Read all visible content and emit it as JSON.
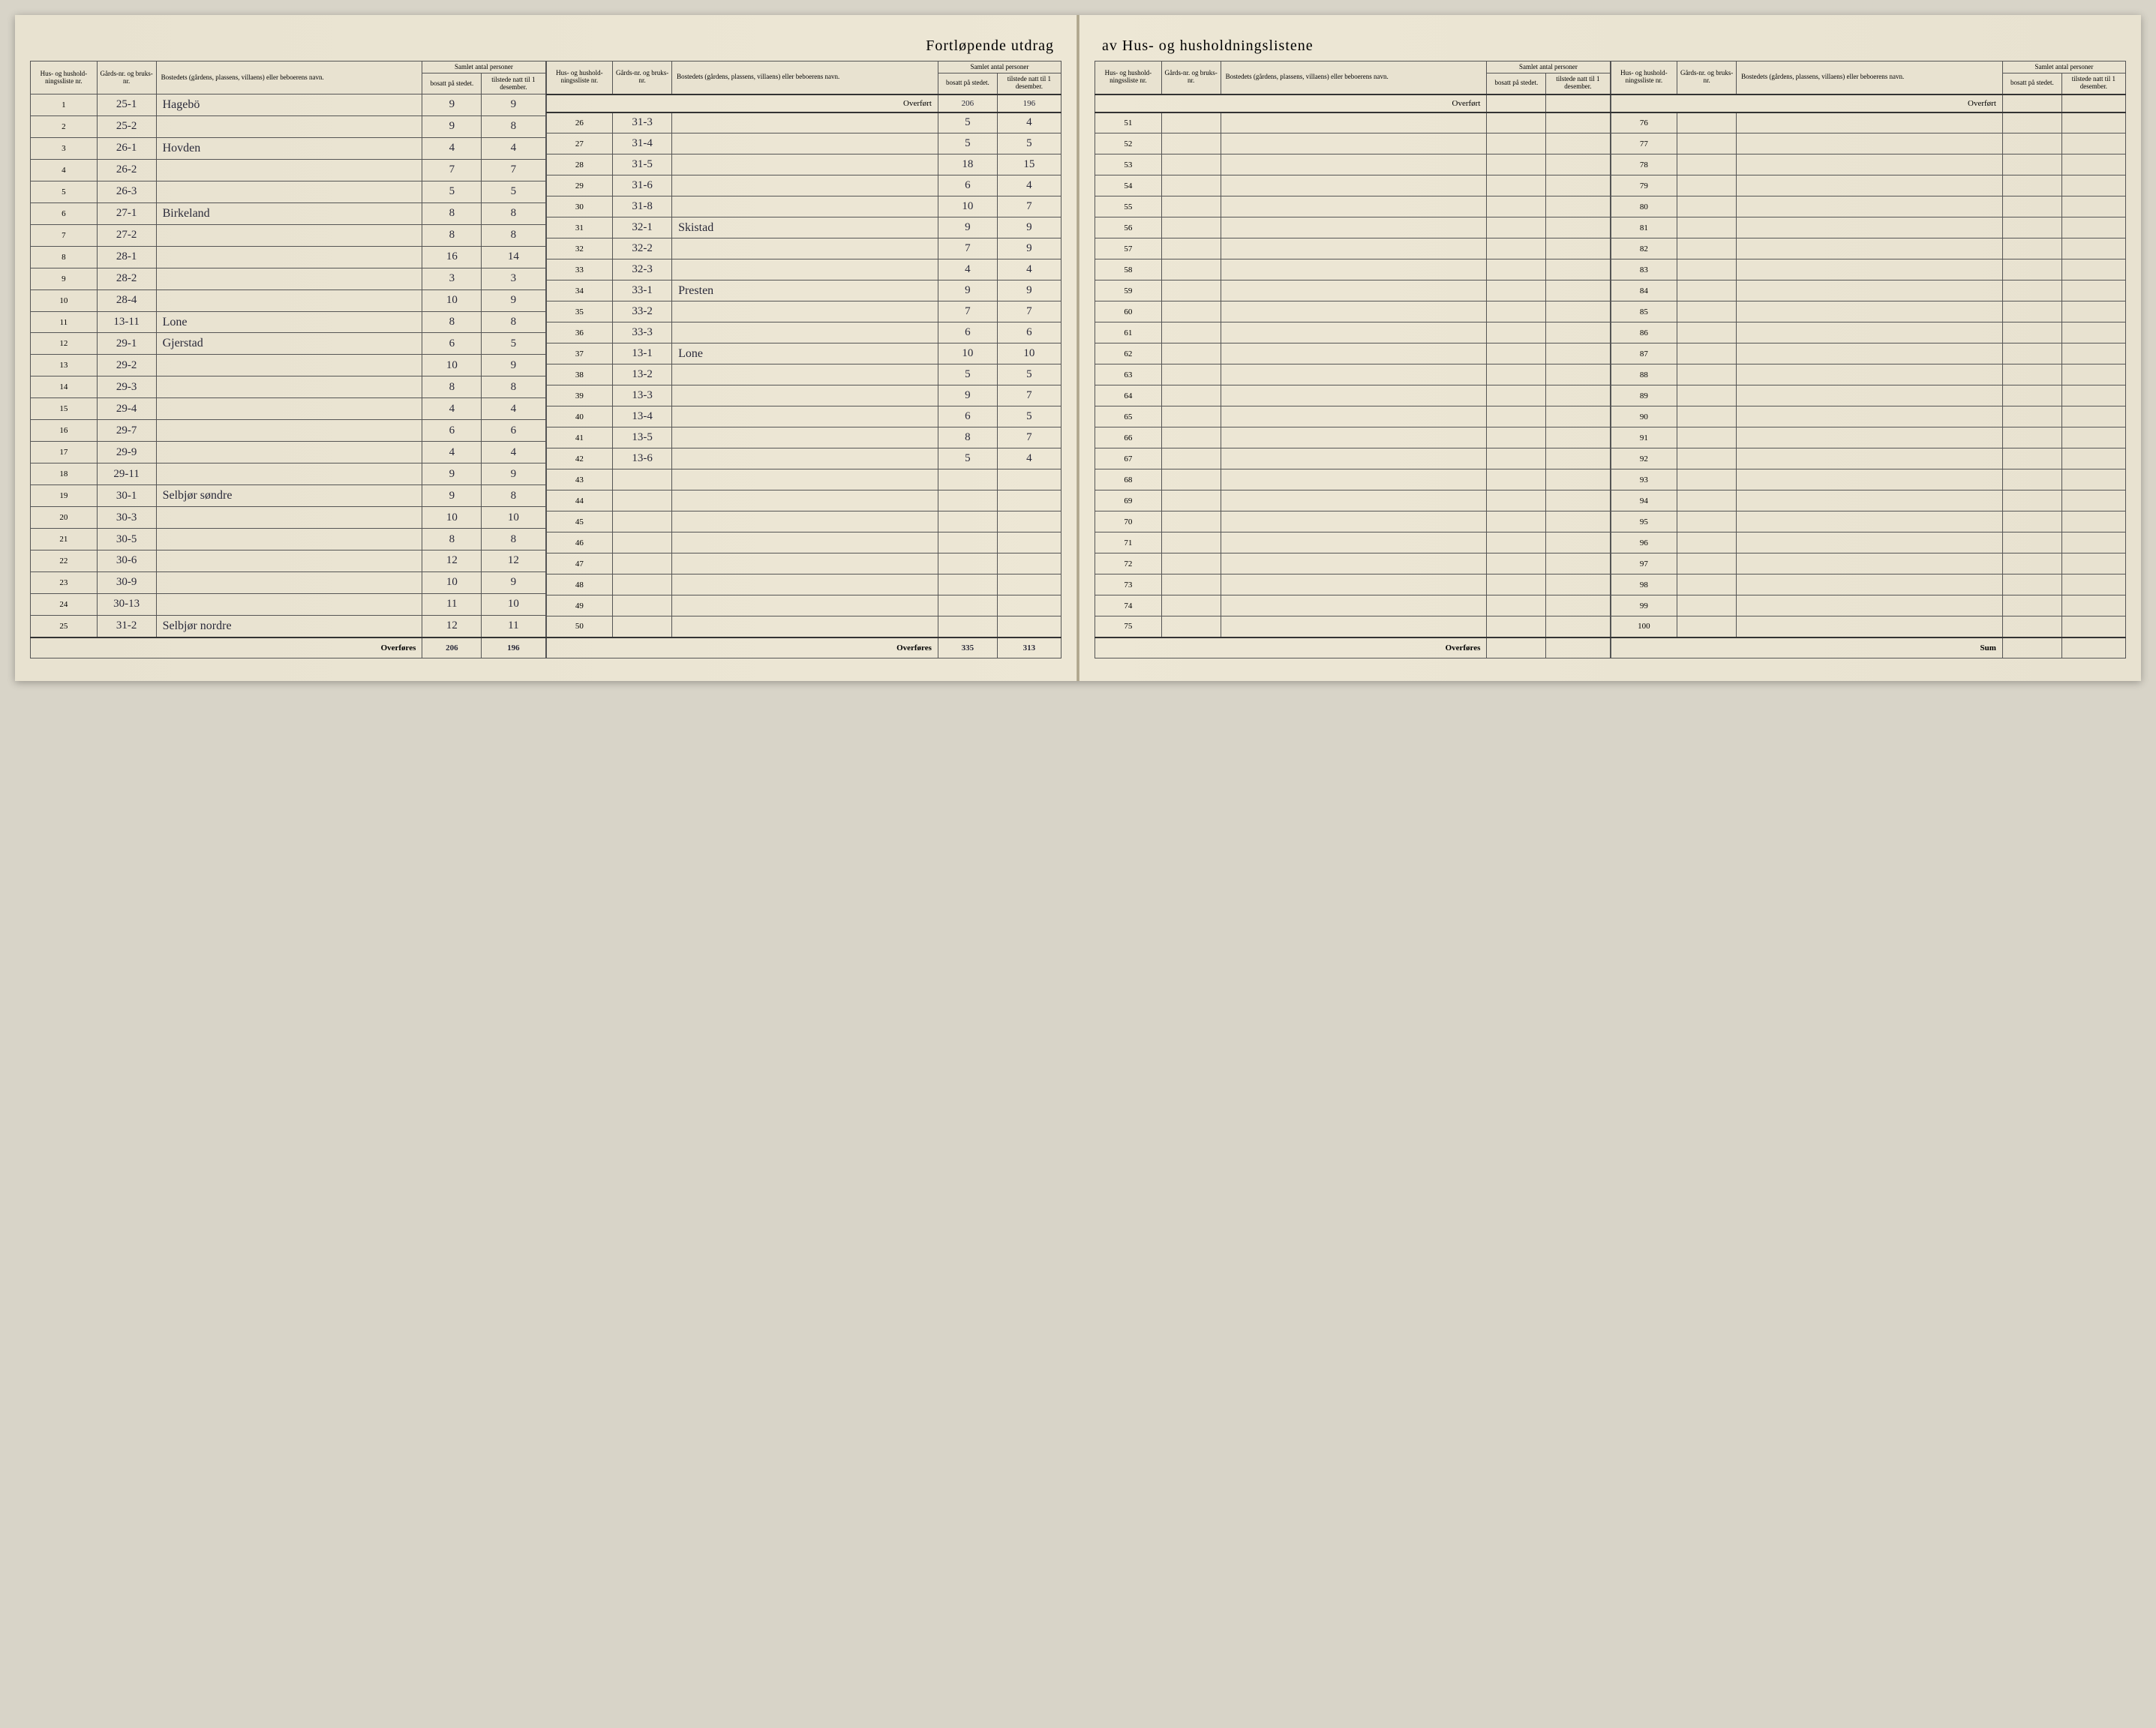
{
  "title_left": "Fortløpende utdrag",
  "title_right": "av Hus- og husholdningslistene",
  "headers": {
    "liste": "Hus- og hushold-ningssliste nr.",
    "gards": "Gårds-nr. og bruks-nr.",
    "bosted": "Bostedets (gårdens, plassens, villaens) eller beboerens navn.",
    "samlet": "Samlet antal personer",
    "bosatt": "bosatt på stedet.",
    "tilstede": "tilstede natt til 1 desember."
  },
  "overfort_label": "Overført",
  "overfores_label": "Overføres",
  "sum_label": "Sum",
  "overfort_top": {
    "bosatt": "206",
    "tilstede": "196"
  },
  "overfores_left": {
    "bosatt": "206",
    "tilstede": "196"
  },
  "overfores_mid": {
    "bosatt": "335",
    "tilstede": "313"
  },
  "rows_a": [
    {
      "n": "1",
      "g": "25-1",
      "name": "Hagebö",
      "b": "9",
      "t": "9"
    },
    {
      "n": "2",
      "g": "25-2",
      "name": "",
      "b": "9",
      "t": "8"
    },
    {
      "n": "3",
      "g": "26-1",
      "name": "Hovden",
      "b": "4",
      "t": "4"
    },
    {
      "n": "4",
      "g": "26-2",
      "name": "",
      "b": "7",
      "t": "7"
    },
    {
      "n": "5",
      "g": "26-3",
      "name": "",
      "b": "5",
      "t": "5"
    },
    {
      "n": "6",
      "g": "27-1",
      "name": "Birkeland",
      "b": "8",
      "t": "8"
    },
    {
      "n": "7",
      "g": "27-2",
      "name": "",
      "b": "8",
      "t": "8"
    },
    {
      "n": "8",
      "g": "28-1",
      "name": "",
      "b": "16",
      "t": "14"
    },
    {
      "n": "9",
      "g": "28-2",
      "name": "",
      "b": "3",
      "t": "3"
    },
    {
      "n": "10",
      "g": "28-4",
      "name": "",
      "b": "10",
      "t": "9"
    },
    {
      "n": "11",
      "g": "13-11",
      "name": "Lone",
      "b": "8",
      "t": "8"
    },
    {
      "n": "12",
      "g": "29-1",
      "name": "Gjerstad",
      "b": "6",
      "t": "5"
    },
    {
      "n": "13",
      "g": "29-2",
      "name": "",
      "b": "10",
      "t": "9"
    },
    {
      "n": "14",
      "g": "29-3",
      "name": "",
      "b": "8",
      "t": "8"
    },
    {
      "n": "15",
      "g": "29-4",
      "name": "",
      "b": "4",
      "t": "4"
    },
    {
      "n": "16",
      "g": "29-7",
      "name": "",
      "b": "6",
      "t": "6"
    },
    {
      "n": "17",
      "g": "29-9",
      "name": "",
      "b": "4",
      "t": "4"
    },
    {
      "n": "18",
      "g": "29-11",
      "name": "",
      "b": "9",
      "t": "9"
    },
    {
      "n": "19",
      "g": "30-1",
      "name": "Selbjør søndre",
      "b": "9",
      "t": "8"
    },
    {
      "n": "20",
      "g": "30-3",
      "name": "",
      "b": "10",
      "t": "10"
    },
    {
      "n": "21",
      "g": "30-5",
      "name": "",
      "b": "8",
      "t": "8"
    },
    {
      "n": "22",
      "g": "30-6",
      "name": "",
      "b": "12",
      "t": "12"
    },
    {
      "n": "23",
      "g": "30-9",
      "name": "",
      "b": "10",
      "t": "9"
    },
    {
      "n": "24",
      "g": "30-13",
      "name": "",
      "b": "11",
      "t": "10"
    },
    {
      "n": "25",
      "g": "31-2",
      "name": "Selbjør nordre",
      "b": "12",
      "t": "11"
    }
  ],
  "rows_b": [
    {
      "n": "26",
      "g": "31-3",
      "name": "",
      "b": "5",
      "t": "4"
    },
    {
      "n": "27",
      "g": "31-4",
      "name": "",
      "b": "5",
      "t": "5"
    },
    {
      "n": "28",
      "g": "31-5",
      "name": "",
      "b": "18",
      "t": "15"
    },
    {
      "n": "29",
      "g": "31-6",
      "name": "",
      "b": "6",
      "t": "4"
    },
    {
      "n": "30",
      "g": "31-8",
      "name": "",
      "b": "10",
      "t": "7"
    },
    {
      "n": "31",
      "g": "32-1",
      "name": "Skistad",
      "b": "9",
      "t": "9"
    },
    {
      "n": "32",
      "g": "32-2",
      "name": "",
      "b": "7",
      "t": "9"
    },
    {
      "n": "33",
      "g": "32-3",
      "name": "",
      "b": "4",
      "t": "4"
    },
    {
      "n": "34",
      "g": "33-1",
      "name": "Presten",
      "b": "9",
      "t": "9"
    },
    {
      "n": "35",
      "g": "33-2",
      "name": "",
      "b": "7",
      "t": "7"
    },
    {
      "n": "36",
      "g": "33-3",
      "name": "",
      "b": "6",
      "t": "6"
    },
    {
      "n": "37",
      "g": "13-1",
      "name": "Lone",
      "b": "10",
      "t": "10"
    },
    {
      "n": "38",
      "g": "13-2",
      "name": "",
      "b": "5",
      "t": "5"
    },
    {
      "n": "39",
      "g": "13-3",
      "name": "",
      "b": "9",
      "t": "7"
    },
    {
      "n": "40",
      "g": "13-4",
      "name": "",
      "b": "6",
      "t": "5"
    },
    {
      "n": "41",
      "g": "13-5",
      "name": "",
      "b": "8",
      "t": "7"
    },
    {
      "n": "42",
      "g": "13-6",
      "name": "",
      "b": "5",
      "t": "4"
    },
    {
      "n": "43",
      "g": "",
      "name": "",
      "b": "",
      "t": ""
    },
    {
      "n": "44",
      "g": "",
      "name": "",
      "b": "",
      "t": ""
    },
    {
      "n": "45",
      "g": "",
      "name": "",
      "b": "",
      "t": ""
    },
    {
      "n": "46",
      "g": "",
      "name": "",
      "b": "",
      "t": ""
    },
    {
      "n": "47",
      "g": "",
      "name": "",
      "b": "",
      "t": ""
    },
    {
      "n": "48",
      "g": "",
      "name": "",
      "b": "",
      "t": ""
    },
    {
      "n": "49",
      "g": "",
      "name": "",
      "b": "",
      "t": ""
    },
    {
      "n": "50",
      "g": "",
      "name": "",
      "b": "",
      "t": ""
    }
  ],
  "rows_c": [
    {
      "n": "51"
    },
    {
      "n": "52"
    },
    {
      "n": "53"
    },
    {
      "n": "54"
    },
    {
      "n": "55"
    },
    {
      "n": "56"
    },
    {
      "n": "57"
    },
    {
      "n": "58"
    },
    {
      "n": "59"
    },
    {
      "n": "60"
    },
    {
      "n": "61"
    },
    {
      "n": "62"
    },
    {
      "n": "63"
    },
    {
      "n": "64"
    },
    {
      "n": "65"
    },
    {
      "n": "66"
    },
    {
      "n": "67"
    },
    {
      "n": "68"
    },
    {
      "n": "69"
    },
    {
      "n": "70"
    },
    {
      "n": "71"
    },
    {
      "n": "72"
    },
    {
      "n": "73"
    },
    {
      "n": "74"
    },
    {
      "n": "75"
    }
  ],
  "rows_d": [
    {
      "n": "76"
    },
    {
      "n": "77"
    },
    {
      "n": "78"
    },
    {
      "n": "79"
    },
    {
      "n": "80"
    },
    {
      "n": "81"
    },
    {
      "n": "82"
    },
    {
      "n": "83"
    },
    {
      "n": "84"
    },
    {
      "n": "85"
    },
    {
      "n": "86"
    },
    {
      "n": "87"
    },
    {
      "n": "88"
    },
    {
      "n": "89"
    },
    {
      "n": "90"
    },
    {
      "n": "91"
    },
    {
      "n": "92"
    },
    {
      "n": "93"
    },
    {
      "n": "94"
    },
    {
      "n": "95"
    },
    {
      "n": "96"
    },
    {
      "n": "97"
    },
    {
      "n": "98"
    },
    {
      "n": "99"
    },
    {
      "n": "100"
    }
  ]
}
